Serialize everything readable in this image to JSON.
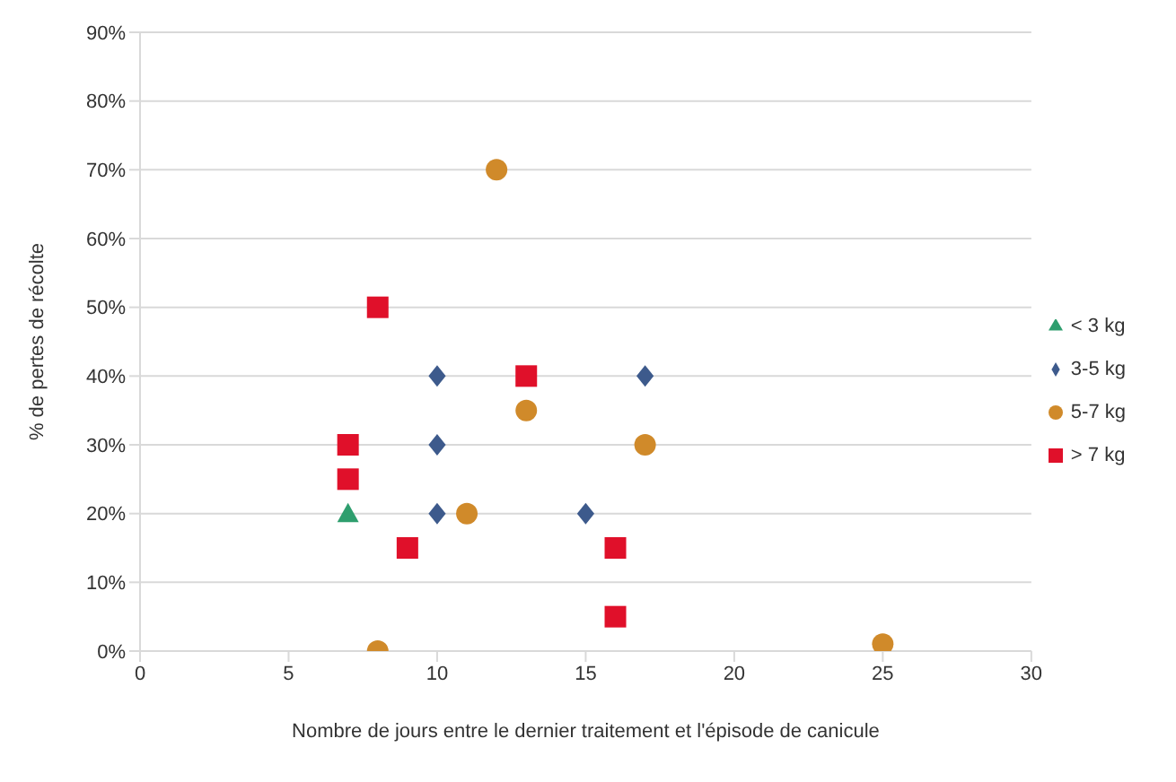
{
  "chart_data": {
    "type": "scatter",
    "xlabel": "Nombre de jours entre le dernier traitement et l'épisode de canicule",
    "ylabel": "% de pertes de récolte",
    "xlim": [
      0,
      30
    ],
    "xticks": [
      0,
      5,
      10,
      15,
      20,
      25,
      30
    ],
    "ylim": [
      0,
      90
    ],
    "yticks": [
      {
        "value": 0,
        "label": "0%"
      },
      {
        "value": 10,
        "label": "10%"
      },
      {
        "value": 20,
        "label": "20%"
      },
      {
        "value": 30,
        "label": "30%"
      },
      {
        "value": 40,
        "label": "40%"
      },
      {
        "value": 50,
        "label": "50%"
      },
      {
        "value": 60,
        "label": "60%"
      },
      {
        "value": 70,
        "label": "70%"
      },
      {
        "value": 80,
        "label": "80%"
      },
      {
        "value": 90,
        "label": "90%"
      }
    ],
    "grid": "y",
    "legend": "right",
    "series": [
      {
        "name": "< 3 kg",
        "color": "#2e9e6e",
        "marker": "triangle",
        "x": [
          7
        ],
        "values": [
          20
        ]
      },
      {
        "name": "3-5 kg",
        "color": "#3d5a8c",
        "marker": "diamond",
        "x": [
          10,
          17,
          10,
          10,
          15
        ],
        "values": [
          40,
          40,
          30,
          20,
          20
        ]
      },
      {
        "name": "5-7 kg",
        "color": "#d08a2a",
        "marker": "circle",
        "x": [
          12,
          13,
          17,
          11,
          8,
          25
        ],
        "values": [
          70,
          35,
          30,
          20,
          0,
          1
        ]
      },
      {
        "name": "> 7 kg",
        "color": "#e0102a",
        "marker": "square",
        "x": [
          8,
          13,
          7,
          7,
          9,
          16,
          16
        ],
        "values": [
          50,
          40,
          30,
          25,
          15,
          15,
          5
        ]
      }
    ]
  }
}
